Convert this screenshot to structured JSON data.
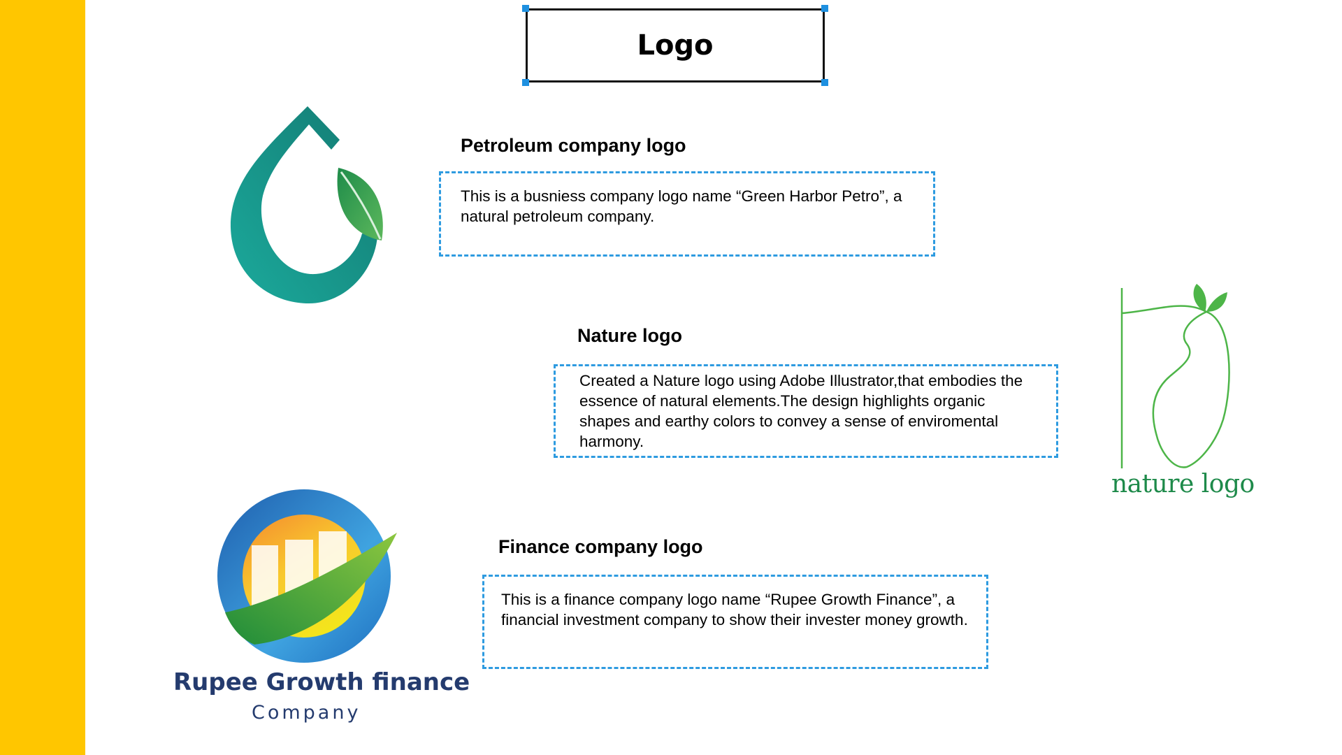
{
  "slide": {
    "title": "Logo",
    "colors": {
      "sidebar": "#FFC600",
      "dashed_border": "#2E9BE0",
      "selection_handle": "#1E90E0",
      "petro_teal": "#149B92",
      "petro_leaf": "#2E9E55",
      "nature_green": "#4DB548",
      "nature_text": "#1E8A4A",
      "finance_navy": "#243B6E"
    }
  },
  "sections": {
    "petroleum": {
      "heading": "Petroleum company logo",
      "description": "This is a busniess company logo name “Green Harbor Petro”, a natural petroleum company.",
      "logo_icon": "oil-drop-leaf-icon"
    },
    "nature": {
      "heading": "Nature logo",
      "description": "Created a Nature logo using Adobe Illustrator,that embodies the essence of natural elements.The design highlights organic shapes and earthy colors to convey a sense of enviromental harmony.",
      "logo_icon": "mango-leaf-icon",
      "logo_text": "nature logo"
    },
    "finance": {
      "heading": "Finance company logo",
      "description": "This is a finance company logo name “Rupee Growth Finance”, a financial investment company to show their invester money growth.",
      "logo_icon": "growth-chart-circle-icon",
      "logo_name": "Rupee Growth finance",
      "logo_subname": "Company"
    }
  }
}
